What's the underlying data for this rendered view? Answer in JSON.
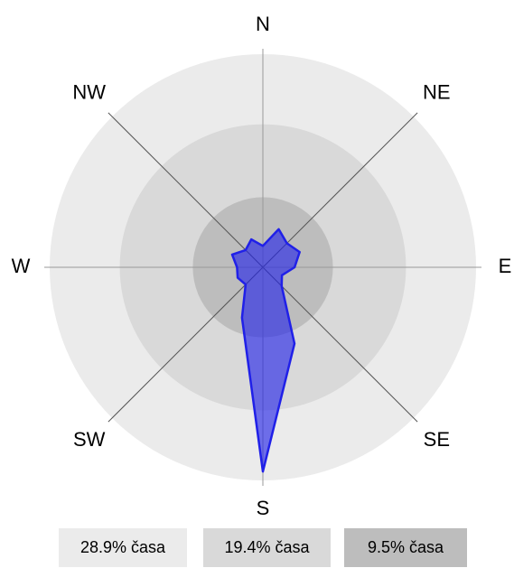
{
  "chart_data": {
    "type": "radar",
    "categories": [
      "N",
      null,
      "NE",
      null,
      "E",
      null,
      "SE",
      null,
      "S",
      null,
      "SW",
      null,
      "W",
      null,
      "NW",
      null
    ],
    "series": [
      {
        "color": "#2020e8",
        "values": [
          2.9,
          5.6,
          4.6,
          5.4,
          4.3,
          2.8,
          3.6,
          11.2,
          27.7,
          7.4,
          3.3,
          3.7,
          3.5,
          4.5,
          3.3,
          4.1
        ]
      }
    ],
    "rlim": [
      0,
      28.9
    ],
    "rings": [
      {
        "value": 28.9,
        "label": "28.9% časa",
        "color": "#ebebeb"
      },
      {
        "value": 19.4,
        "label": "19.4% časa",
        "color": "#d9d9d9"
      },
      {
        "value": 9.5,
        "label": "9.5% časa",
        "color": "#bdbdbd"
      }
    ]
  }
}
